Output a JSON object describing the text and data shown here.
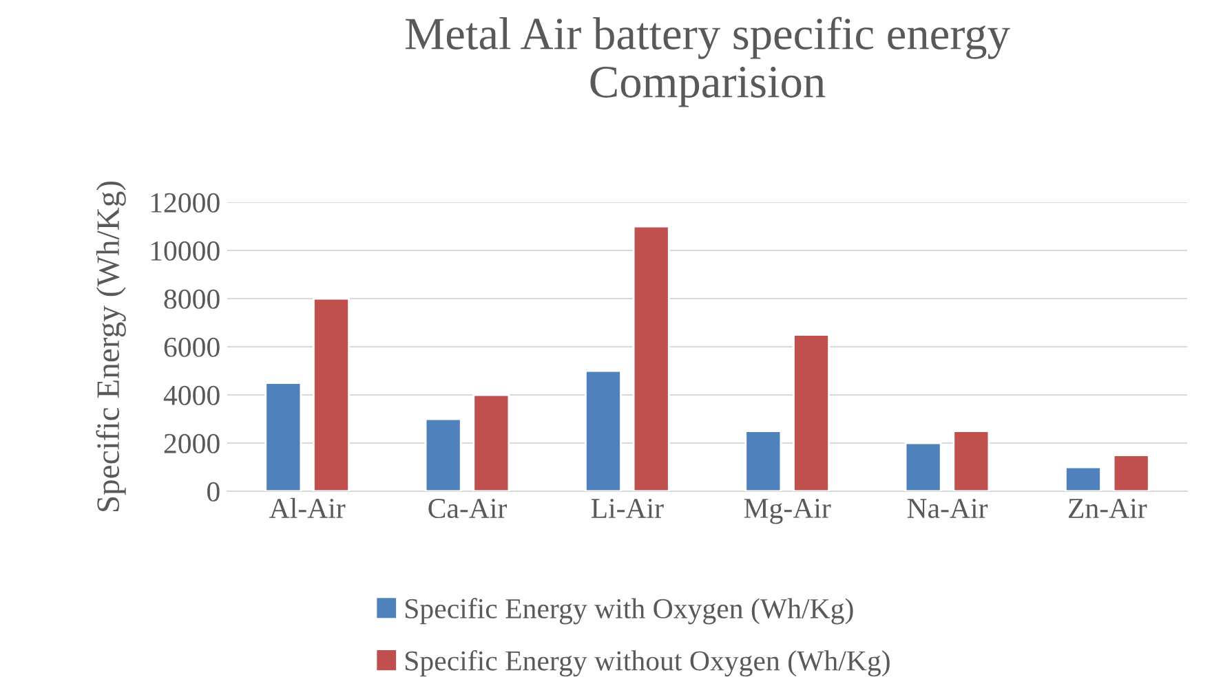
{
  "chart_data": {
    "type": "bar",
    "title": "Metal Air battery specific energy\nComparision",
    "ylabel": "Specific Energy (Wh/Kg)",
    "categories": [
      "Al-Air",
      "Ca-Air",
      "Li-Air",
      "Mg-Air",
      "Na-Air",
      "Zn-Air"
    ],
    "series": [
      {
        "name": "Specific Energy with Oxygen (Wh/Kg)",
        "color": "#4f81bd",
        "values": [
          4500,
          3000,
          5000,
          2500,
          2000,
          1000
        ]
      },
      {
        "name": "Specific Energy without Oxygen (Wh/Kg)",
        "color": "#c0504d",
        "values": [
          8000,
          4000,
          11000,
          6500,
          2500,
          1500
        ]
      }
    ],
    "ylim": [
      0,
      12000
    ],
    "yticks": [
      0,
      2000,
      4000,
      6000,
      8000,
      10000,
      12000
    ],
    "grid": "y",
    "legend": "bottom"
  }
}
